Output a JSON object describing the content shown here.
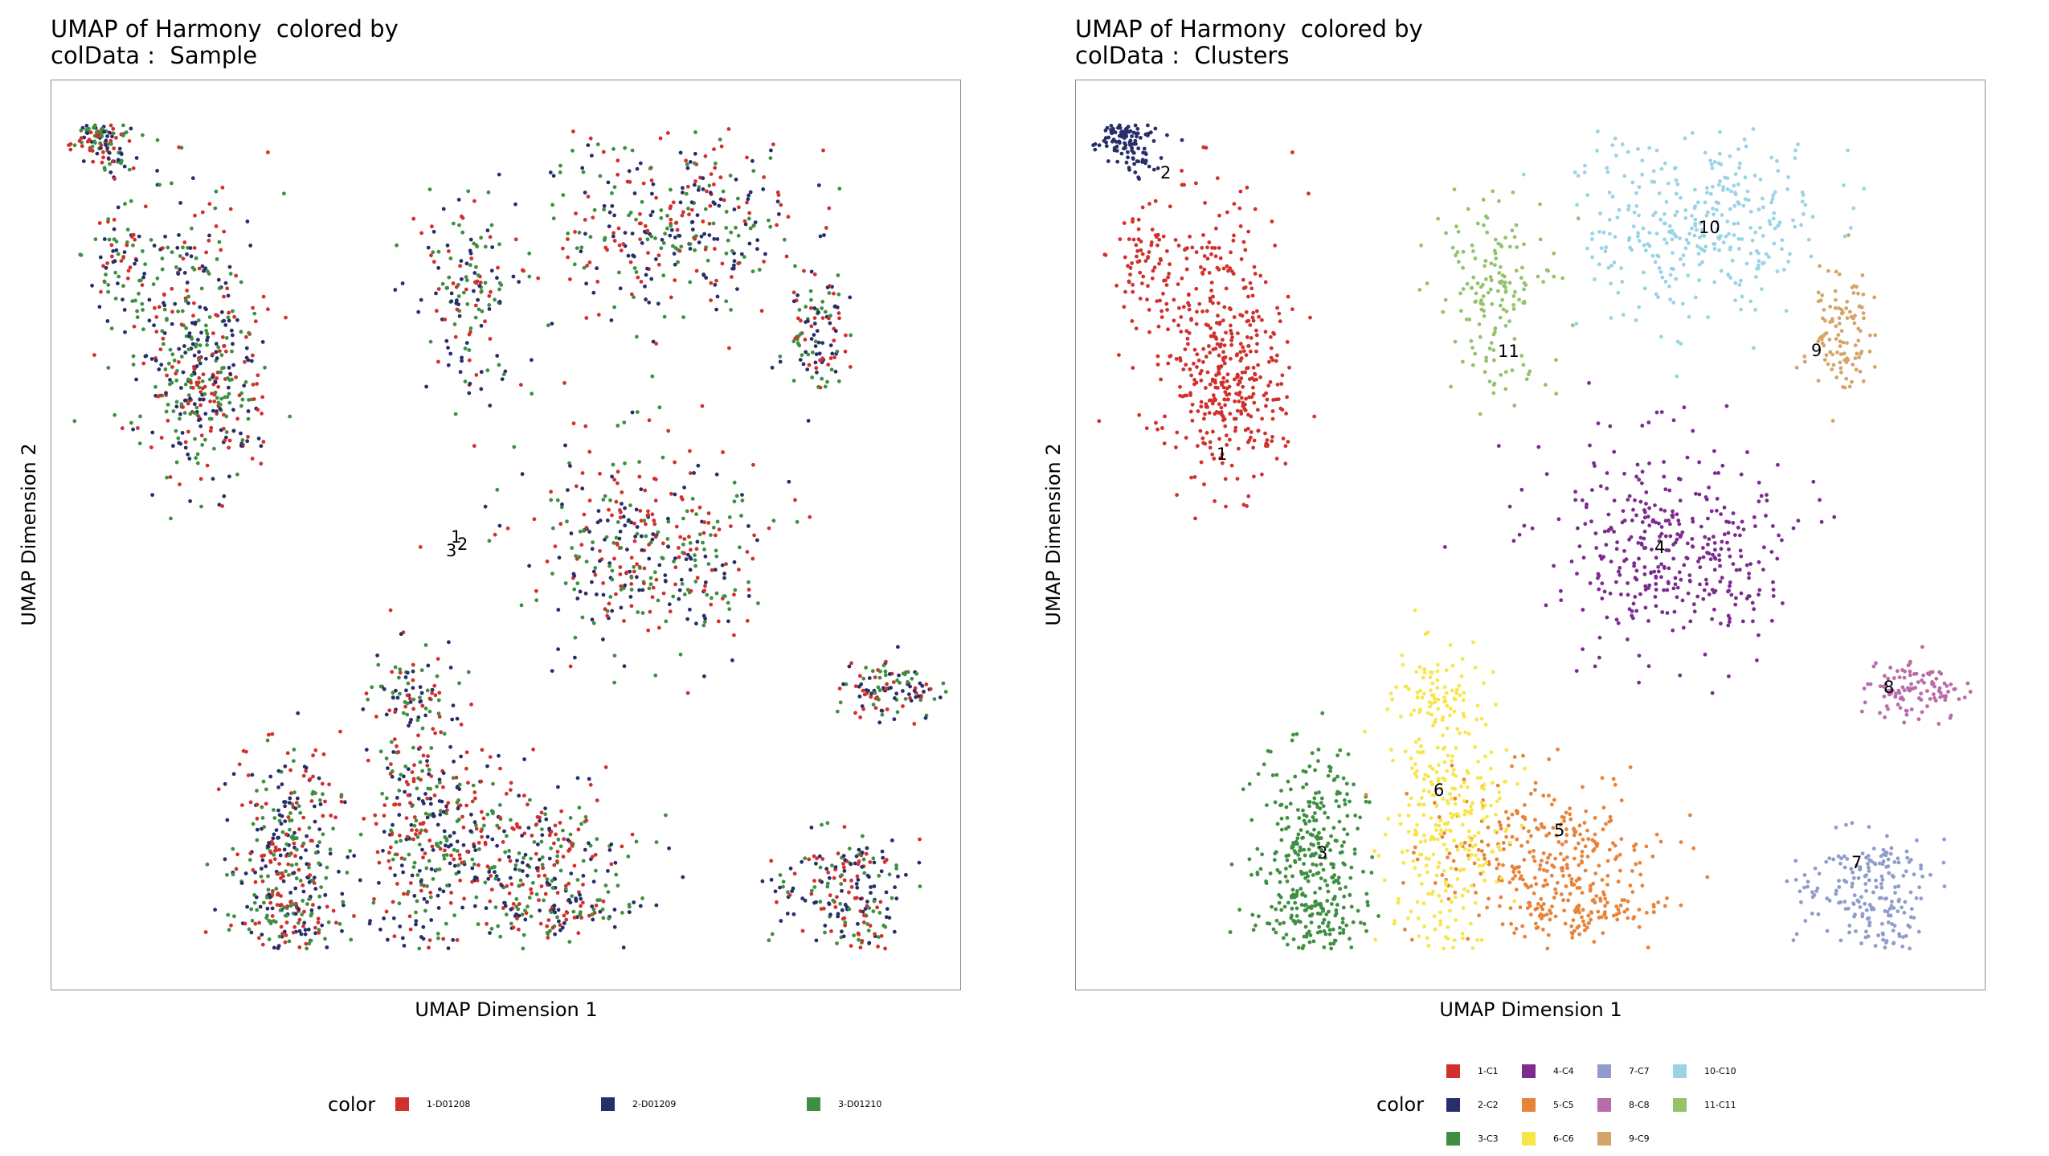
{
  "chart_data": [
    {
      "type": "scatter",
      "title": "UMAP of Harmony  colored by\ncolData :  Sample",
      "xlabel": "UMAP Dimension 1",
      "ylabel": "UMAP Dimension 2",
      "legend": {
        "title": "color",
        "placement": "bottom",
        "entries": [
          "1-D01208",
          "2-D01209",
          "3-D01210"
        ]
      },
      "colors": [
        "#d0312d",
        "#272e6a",
        "#3f8f42"
      ],
      "point_size": 2,
      "series_mixing": "samples intermixed throughout all clusters",
      "center_labels": [
        "1",
        "2",
        "3"
      ]
    },
    {
      "type": "scatter",
      "title": "UMAP of Harmony  colored by\ncolData :  Clusters",
      "xlabel": "UMAP Dimension 1",
      "ylabel": "UMAP Dimension 2",
      "legend": {
        "title": "color",
        "placement": "bottom",
        "entries": [
          "1-C1",
          "2-C2",
          "3-C3",
          "4-C4",
          "5-C5",
          "6-C6",
          "7-C7",
          "8-C8",
          "9-C9",
          "10-C10",
          "11-C11"
        ]
      },
      "colors": [
        "#d0312d",
        "#272e6a",
        "#3f8f42",
        "#7c2b8e",
        "#e8833a",
        "#f7e64a",
        "#8f9ccc",
        "#b86ca9",
        "#d3a56b",
        "#9ad3e6",
        "#93c36a"
      ],
      "cluster_labels": [
        "1",
        "2",
        "3",
        "4",
        "5",
        "6",
        "7",
        "8",
        "9",
        "10",
        "11"
      ]
    }
  ]
}
